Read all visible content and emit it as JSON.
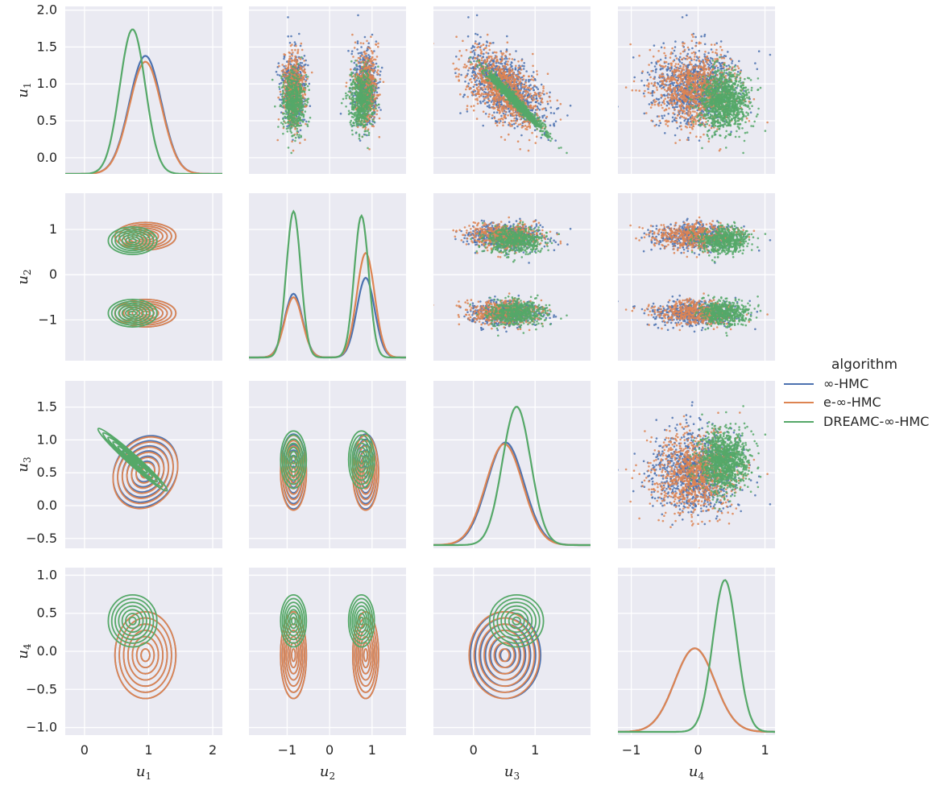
{
  "chart_data": {
    "type": "scatter",
    "title": "",
    "variables": [
      "u1",
      "u2",
      "u3",
      "u4"
    ],
    "axis_labels": [
      {
        "base": "u",
        "sub": "1"
      },
      {
        "base": "u",
        "sub": "2"
      },
      {
        "base": "u",
        "sub": "3"
      },
      {
        "base": "u",
        "sub": "4"
      }
    ],
    "panel_types": {
      "diagonal": "kde-line",
      "upper": "scatter",
      "lower": "kde-contour"
    },
    "xlims": [
      [
        -0.3,
        2.15
      ],
      [
        -1.9,
        1.8
      ],
      [
        -0.65,
        1.9
      ],
      [
        -1.2,
        1.15
      ]
    ],
    "ylims": [
      [
        -0.22,
        2.05
      ],
      [
        -1.9,
        1.8
      ],
      [
        -0.65,
        1.9
      ],
      [
        -1.1,
        1.1
      ]
    ],
    "xticks": [
      [
        0,
        1,
        2
      ],
      [
        -1,
        0,
        1
      ],
      [
        0,
        1
      ],
      [
        -1,
        0,
        1
      ]
    ],
    "yticks": [
      [
        -0.0,
        0.5,
        1.0,
        1.5,
        2.0
      ],
      [
        -1,
        0,
        1
      ],
      [
        -0.5,
        0.0,
        0.5,
        1.0,
        1.5
      ],
      [
        -1.0,
        -0.5,
        0.0,
        0.5,
        1.0
      ]
    ],
    "xtick_labels": [
      [
        "0",
        "1",
        "2"
      ],
      [
        "−1",
        "0",
        "1"
      ],
      [
        "0",
        "1"
      ],
      [
        "−1",
        "0",
        "1"
      ]
    ],
    "ytick_labels": [
      [
        "0.0",
        "0.5",
        "1.0",
        "1.5",
        "2.0"
      ],
      [
        "−1",
        "0",
        "1"
      ],
      [
        "−0.5",
        "0.0",
        "0.5",
        "1.0",
        "1.5"
      ],
      [
        "−1.0",
        "−0.5",
        "0.0",
        "0.5",
        "1.0"
      ]
    ],
    "legend": {
      "title": "algorithm",
      "position": "right-center",
      "entries": [
        "∞-HMC",
        "e-∞-HMC",
        "DREAMC-∞-HMC"
      ]
    },
    "series": [
      {
        "name": "∞-HMC",
        "color": "#4c72b0",
        "mean": [
          0.95,
          0.0,
          0.52,
          -0.05
        ],
        "sd": [
          0.25,
          0.9,
          0.3,
          0.3
        ],
        "u2_modes": [
          -0.85,
          0.85
        ],
        "u2_mode_weights": [
          0.5,
          0.5
        ],
        "corr_u1_u3": -0.5
      },
      {
        "name": "e-∞-HMC",
        "color": "#dd8452",
        "mean": [
          0.95,
          0.0,
          0.5,
          -0.05
        ],
        "sd": [
          0.25,
          0.9,
          0.3,
          0.3
        ],
        "u2_modes": [
          -0.85,
          0.85
        ],
        "u2_mode_weights": [
          0.47,
          0.53
        ],
        "corr_u1_u3": -0.5
      },
      {
        "name": "DREAMC-∞-HMC",
        "color": "#55a868",
        "mean": [
          0.75,
          0.0,
          0.7,
          0.4
        ],
        "sd": [
          0.2,
          0.8,
          0.23,
          0.18
        ],
        "u2_modes": [
          -0.85,
          0.75
        ],
        "u2_mode_weights": [
          0.5,
          0.5
        ],
        "corr_u1_u3": -0.98
      }
    ],
    "diagonal_peaks": {
      "u1": [
        1.6,
        1.52,
        1.96
      ],
      "u2_left": [
        0.72,
        0.68,
        1.65
      ],
      "u2_right": [
        0.9,
        1.18,
        1.6
      ],
      "u3": [
        1.32,
        1.3,
        1.78
      ],
      "u4": [
        -0.05,
        -0.03,
        1.0
      ]
    }
  },
  "colors": {
    "panel_bg": "#eaeaf2",
    "grid": "#ffffff",
    "text": "#262626"
  }
}
